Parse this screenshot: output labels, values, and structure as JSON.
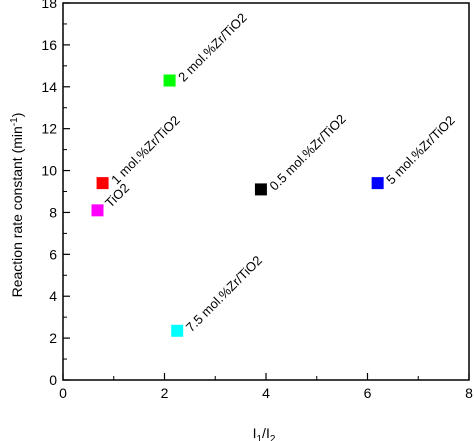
{
  "chart_data": {
    "type": "scatter",
    "title": "",
    "xlabel": {
      "base": "I",
      "sub1": "1",
      "slash": "/",
      "base2": "I",
      "sub2": "2"
    },
    "ylabel": {
      "text": "Reaction rate constant (min",
      "sup": "-1",
      "close": ")"
    },
    "xlim": [
      0,
      8
    ],
    "ylim": [
      0,
      18
    ],
    "xticks": [
      0,
      2,
      4,
      6,
      8
    ],
    "yticks": [
      0,
      2,
      4,
      6,
      8,
      10,
      12,
      14,
      16,
      18
    ],
    "xtick_labels": [
      "0",
      "2",
      "4",
      "6",
      "8"
    ],
    "ytick_labels": [
      "0",
      "2",
      "4",
      "6",
      "8",
      "10",
      "12",
      "14",
      "16",
      "18"
    ],
    "grid": false,
    "points": [
      {
        "label": "TiO2",
        "x": 0.68,
        "y": 8.1,
        "color": "#ff00ff"
      },
      {
        "label": "1 mol.%Zr/TiO2",
        "x": 0.78,
        "y": 9.4,
        "color": "#ff0000"
      },
      {
        "label": "2 mol.%Zr/TiO2",
        "x": 2.1,
        "y": 14.3,
        "color": "#00ff00"
      },
      {
        "label": "0.5 mol.%Zr/TiO2",
        "x": 3.9,
        "y": 9.1,
        "color": "#000000"
      },
      {
        "label": "5 mol.%Zr/TiO2",
        "x": 6.2,
        "y": 9.4,
        "color": "#0000ff"
      },
      {
        "label": "7.5 mol.%Zr/TiO2",
        "x": 2.25,
        "y": 2.35,
        "color": "#00ffff"
      }
    ]
  }
}
